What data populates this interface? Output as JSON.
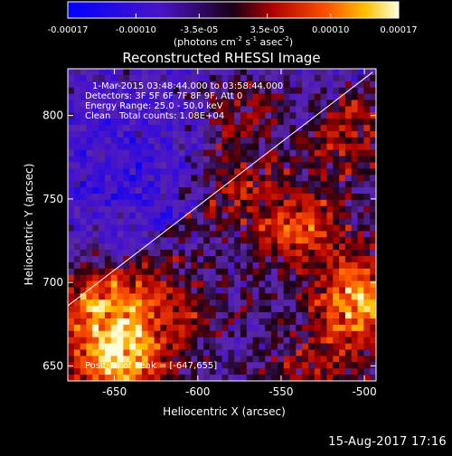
{
  "chart_data": {
    "type": "heatmap",
    "title": "Reconstructed RHESSI Image",
    "xlabel": "Heliocentric X (arcsec)",
    "ylabel": "Heliocentric Y (arcsec)",
    "xlim": [
      -678,
      -493
    ],
    "ylim": [
      641,
      828
    ],
    "x_ticks": [
      -650,
      -600,
      -550,
      -500
    ],
    "y_ticks": [
      650,
      700,
      750,
      800
    ],
    "colorbar": {
      "ticks": [
        {
          "value": -0.00017,
          "label": "-0.00017"
        },
        {
          "value": -0.0001,
          "label": "-0.00010"
        },
        {
          "value": -3.5e-05,
          "label": "-3.5e-05"
        },
        {
          "value": 3.5e-05,
          "label": "3.5e-05"
        },
        {
          "value": 0.0001,
          "label": "0.00010"
        },
        {
          "value": 0.00017,
          "label": "0.00017"
        }
      ],
      "range": [
        -0.00017,
        0.00017
      ],
      "unit_prefix": "(photons cm",
      "unit_sup1": "-2",
      "unit_mid1": " s",
      "unit_sup2": "-1",
      "unit_mid2": " asec",
      "unit_sup3": "-2",
      "unit_suffix": ")"
    },
    "annotations": [
      "1-Mar-2015 03:48:44.000 to 03:58:44.000",
      "Detectors: 3F 5F 6F 7F 8F 9F, Att 0",
      "Energy Range: 25.0 - 50.0 keV",
      "Clean",
      "Total counts: 1.08E+04"
    ],
    "peak_label": "Position of Peak = [-647,655]",
    "peak": [
      -647,
      655
    ],
    "limb_line": {
      "x": [
        -678,
        -495
      ],
      "y": [
        686,
        826
      ]
    },
    "intensity_hotspots": [
      {
        "x": -648,
        "y": 653,
        "value": 0.00017
      },
      {
        "x": -662,
        "y": 688,
        "value": 0.00012
      },
      {
        "x": -503,
        "y": 690,
        "value": 0.00015
      },
      {
        "x": -540,
        "y": 733,
        "value": 0.00011
      },
      {
        "x": -620,
        "y": 684,
        "value": 9e-05
      },
      {
        "x": -583,
        "y": 763,
        "value": 7e-05
      },
      {
        "x": -568,
        "y": 805,
        "value": 8e-05
      },
      {
        "x": -510,
        "y": 790,
        "value": 7e-05
      },
      {
        "x": -525,
        "y": 650,
        "value": 6e-05
      }
    ]
  },
  "timestamp": "15-Aug-2017 17:16"
}
